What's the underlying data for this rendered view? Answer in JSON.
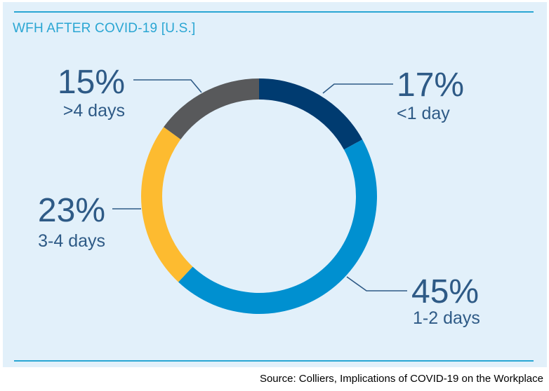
{
  "chart_data": {
    "type": "pie",
    "style": "donut",
    "title": "WFH AFTER COVID-19 [U.S.]",
    "slices": [
      {
        "value": 17,
        "value_label": "17%",
        "label": "<1 day",
        "color": "#003b70"
      },
      {
        "value": 45,
        "value_label": "45%",
        "label": "1-2 days",
        "color": "#0090d0"
      },
      {
        "value": 23,
        "value_label": "23%",
        "label": "3-4 days",
        "color": "#fdbb30"
      },
      {
        "value": 15,
        "value_label": "15%",
        "label": ">4 days",
        "color": "#58595b"
      }
    ],
    "legend": "none",
    "label_placement": "outside with leader lines"
  },
  "source": "Source: Colliers, Implications of COVID-19 on the Workplace",
  "colors": {
    "panel_background": "#e2f0fa",
    "accent": "#2aa6d3",
    "label_text": "#2e5a86"
  }
}
